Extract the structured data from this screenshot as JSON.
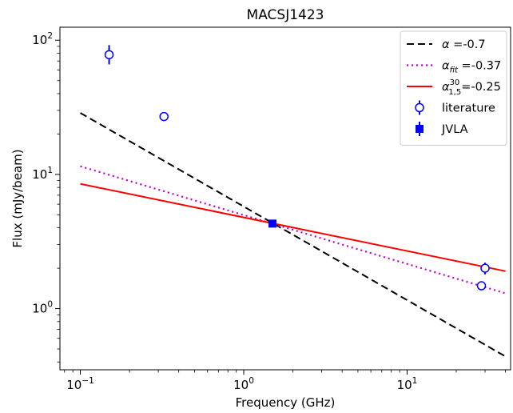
{
  "chart_data": {
    "type": "scatter",
    "title": "MACSJ1423",
    "xlabel": "Frequency (GHz)",
    "ylabel": "Flux (mJy/beam)",
    "x_scale": "log",
    "y_scale": "log",
    "xlim": [
      0.075,
      43
    ],
    "ylim": [
      0.35,
      125
    ],
    "x_ticks": [
      {
        "value": 0.1,
        "base": "10",
        "exp": "−1"
      },
      {
        "value": 1,
        "base": "10",
        "exp": "0"
      },
      {
        "value": 10,
        "base": "10",
        "exp": "1"
      }
    ],
    "y_ticks": [
      {
        "value": 1,
        "base": "10",
        "exp": "0"
      },
      {
        "value": 10,
        "base": "10",
        "exp": "1"
      },
      {
        "value": 100,
        "base": "10",
        "exp": "2"
      }
    ],
    "grid": false,
    "legend_position": "top-right",
    "series": [
      {
        "kind": "line",
        "style": "dashed",
        "color": "#000000",
        "x": [
          0.1,
          40
        ],
        "y": [
          28.7,
          0.44
        ]
      },
      {
        "kind": "line",
        "style": "dotted",
        "color": "#c000c0",
        "x": [
          0.1,
          40
        ],
        "y": [
          11.5,
          1.3
        ]
      },
      {
        "kind": "line",
        "style": "solid",
        "color": "#ff0000",
        "x": [
          0.1,
          40
        ],
        "y": [
          8.5,
          1.9
        ]
      },
      {
        "kind": "errorbar",
        "marker": "open-circle",
        "color": "#0000ff",
        "points": [
          {
            "x": 0.15,
            "y": 78,
            "yerr_low": 12,
            "yerr_high": 14
          },
          {
            "x": 0.325,
            "y": 27,
            "yerr_low": 1.5,
            "yerr_high": 1.5
          },
          {
            "x": 30,
            "y": 2.0,
            "yerr_low": 0.2,
            "yerr_high": 0.2
          },
          {
            "x": 28.5,
            "y": 1.48,
            "yerr_low": 0.08,
            "yerr_high": 0.08
          }
        ]
      },
      {
        "kind": "errorbar",
        "marker": "filled-square",
        "color": "#0000ff",
        "points": [
          {
            "x": 1.5,
            "y": 4.3,
            "yerr_low": 0.2,
            "yerr_high": 0.2
          }
        ]
      }
    ],
    "legend": [
      {
        "kind": "dashed",
        "color": "#000000",
        "symbol": "α",
        "sub": "",
        "sup": "",
        "text": " =-0.7"
      },
      {
        "kind": "dotted",
        "color": "#c000c0",
        "symbol": "α",
        "sub": "fit",
        "sup": "",
        "text": " =-0.37"
      },
      {
        "kind": "solid",
        "color": "#ff0000",
        "symbol": "α",
        "sub": "1,5",
        "sup": "30",
        "text": "=-0.25"
      },
      {
        "kind": "open-circle",
        "color": "#0000ff",
        "symbol": "",
        "sub": "",
        "sup": "",
        "text": "literature"
      },
      {
        "kind": "filled-square",
        "color": "#0000ff",
        "symbol": "",
        "sub": "",
        "sup": "",
        "text": "JVLA"
      }
    ]
  }
}
